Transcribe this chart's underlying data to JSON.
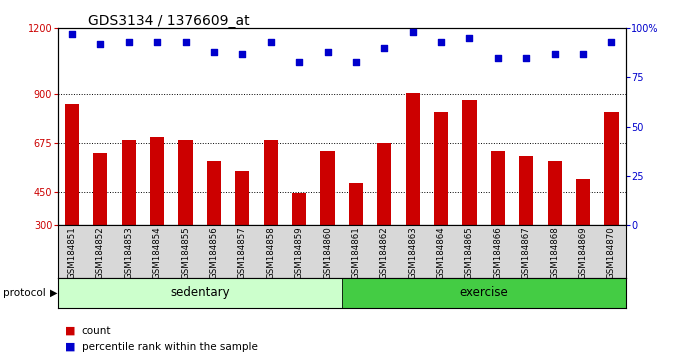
{
  "title": "GDS3134 / 1376609_at",
  "categories": [
    "GSM184851",
    "GSM184852",
    "GSM184853",
    "GSM184854",
    "GSM184855",
    "GSM184856",
    "GSM184857",
    "GSM184858",
    "GSM184859",
    "GSM184860",
    "GSM184861",
    "GSM184862",
    "GSM184863",
    "GSM184864",
    "GSM184865",
    "GSM184866",
    "GSM184867",
    "GSM184868",
    "GSM184869",
    "GSM184870"
  ],
  "bar_values": [
    855,
    630,
    690,
    700,
    690,
    590,
    545,
    690,
    445,
    640,
    490,
    675,
    905,
    815,
    870,
    640,
    615,
    590,
    510,
    815
  ],
  "percentile_values": [
    97,
    92,
    93,
    93,
    93,
    88,
    87,
    93,
    83,
    88,
    83,
    90,
    98,
    93,
    95,
    85,
    85,
    87,
    87,
    93
  ],
  "bar_color": "#cc0000",
  "dot_color": "#0000cc",
  "ylim_left": [
    300,
    1200
  ],
  "ylim_right": [
    0,
    100
  ],
  "yticks_left": [
    300,
    450,
    675,
    900,
    1200
  ],
  "ytick_labels_left": [
    "300",
    "450",
    "675",
    "900",
    "1200"
  ],
  "yticks_right": [
    0,
    25,
    50,
    75,
    100
  ],
  "ytick_labels_right": [
    "0",
    "25",
    "50",
    "75",
    "100%"
  ],
  "hlines": [
    450,
    675,
    900
  ],
  "n_sedentary": 10,
  "n_exercise": 10,
  "sedentary_label": "sedentary",
  "exercise_label": "exercise",
  "protocol_label": "protocol",
  "legend_count_label": "count",
  "legend_percentile_label": "percentile rank within the sample",
  "sedentary_color": "#ccffcc",
  "exercise_color": "#44cc44",
  "bar_width": 0.5,
  "bg_color": "#d8d8d8",
  "plot_bg": "#ffffff",
  "title_fontsize": 10,
  "tick_fontsize": 7,
  "label_fontsize": 8
}
